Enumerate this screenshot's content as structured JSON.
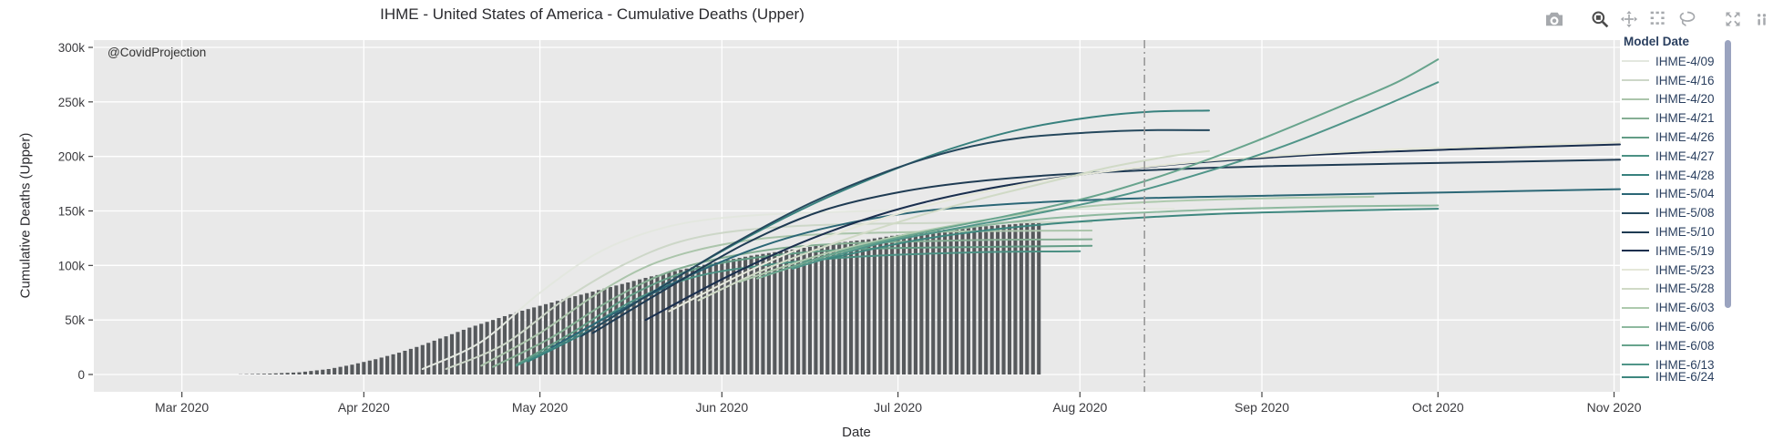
{
  "title": "IHME - United States of America - Cumulative Deaths (Upper)",
  "annotation": "@CovidProjection",
  "legend": {
    "title": "Model Date",
    "has_scrollbar": true,
    "clipped_last_entry": true
  },
  "modebar": {
    "icons": [
      "camera",
      "zoom",
      "pan",
      "box-select",
      "lasso-select",
      "autoscale",
      "plotly-logo"
    ]
  },
  "chart_data": {
    "type": "mixed",
    "title": "IHME - United States of America - Cumulative Deaths (Upper)",
    "x_axis": {
      "title": "Date",
      "unit": "days since 2020-02-15",
      "range_days": [
        0,
        260
      ],
      "ticks": [
        {
          "label": "Mar 2020",
          "day": 15
        },
        {
          "label": "Apr 2020",
          "day": 46
        },
        {
          "label": "May 2020",
          "day": 76
        },
        {
          "label": "Jun 2020",
          "day": 107
        },
        {
          "label": "Jul 2020",
          "day": 137
        },
        {
          "label": "Aug 2020",
          "day": 168
        },
        {
          "label": "Sep 2020",
          "day": 199
        },
        {
          "label": "Oct 2020",
          "day": 229
        },
        {
          "label": "Nov 2020",
          "day": 259
        }
      ],
      "grid": true
    },
    "y_axis": {
      "title": "Cumulative Deaths (Upper)",
      "unit": "thousands of deaths",
      "range_k": [
        -16,
        307
      ],
      "ticks": [
        {
          "label": "0",
          "value": 0
        },
        {
          "label": "50k",
          "value": 50
        },
        {
          "label": "100k",
          "value": 100
        },
        {
          "label": "150k",
          "value": 150
        },
        {
          "label": "200k",
          "value": 200
        },
        {
          "label": "250k",
          "value": 250
        },
        {
          "label": "300k",
          "value": 300
        }
      ],
      "grid": true
    },
    "plot_bg": "#e9e9e9",
    "grid_color": "#ffffff",
    "refline": {
      "day": 179,
      "approx_date": "mid-Aug 2020",
      "style": "dash-dot",
      "color": "#999999"
    },
    "bars": {
      "name": "reported-cumulative-deaths",
      "color": "#56595c",
      "daily": true,
      "day_range": [
        25,
        161
      ],
      "anchors_day_valueK": [
        [
          25,
          0.2
        ],
        [
          30,
          0.8
        ],
        [
          35,
          2
        ],
        [
          40,
          5
        ],
        [
          44,
          9
        ],
        [
          48,
          14
        ],
        [
          52,
          20
        ],
        [
          56,
          27
        ],
        [
          60,
          35
        ],
        [
          64,
          43
        ],
        [
          68,
          50
        ],
        [
          72,
          57
        ],
        [
          76,
          63
        ],
        [
          80,
          69
        ],
        [
          85,
          76
        ],
        [
          90,
          83
        ],
        [
          95,
          90
        ],
        [
          100,
          96
        ],
        [
          107,
          104
        ],
        [
          112,
          109
        ],
        [
          117,
          113
        ],
        [
          122,
          117
        ],
        [
          127,
          121
        ],
        [
          132,
          124
        ],
        [
          137,
          128
        ],
        [
          142,
          131
        ],
        [
          147,
          134
        ],
        [
          152,
          136
        ],
        [
          157,
          138
        ],
        [
          161,
          140
        ]
      ]
    },
    "series": [
      {
        "name": "IHME-4/09",
        "color": "#e3e7df",
        "points": [
          [
            56,
            5
          ],
          [
            66,
            30
          ],
          [
            76,
            75
          ],
          [
            86,
            112
          ],
          [
            96,
            133
          ],
          [
            106,
            143
          ],
          [
            120,
            148
          ],
          [
            145,
            151
          ],
          [
            184,
            152
          ]
        ]
      },
      {
        "name": "IHME-4/16",
        "color": "#cdd7c8",
        "points": [
          [
            60,
            5
          ],
          [
            70,
            28
          ],
          [
            80,
            68
          ],
          [
            90,
            100
          ],
          [
            100,
            122
          ],
          [
            112,
            133
          ],
          [
            130,
            138
          ],
          [
            170,
            140
          ]
        ]
      },
      {
        "name": "IHME-4/20",
        "color": "#abc5ab",
        "points": [
          [
            66,
            8
          ],
          [
            76,
            38
          ],
          [
            86,
            75
          ],
          [
            96,
            103
          ],
          [
            108,
            120
          ],
          [
            122,
            128
          ],
          [
            145,
            131
          ],
          [
            170,
            132
          ]
        ]
      },
      {
        "name": "IHME-4/21",
        "color": "#86af94",
        "points": [
          [
            68,
            7
          ],
          [
            78,
            34
          ],
          [
            88,
            68
          ],
          [
            98,
            94
          ],
          [
            110,
            110
          ],
          [
            124,
            119
          ],
          [
            148,
            123
          ],
          [
            170,
            124
          ]
        ]
      },
      {
        "name": "IHME-4/26",
        "color": "#639d86",
        "points": [
          [
            72,
            9
          ],
          [
            82,
            40
          ],
          [
            92,
            74
          ],
          [
            102,
            96
          ],
          [
            114,
            108
          ],
          [
            130,
            115
          ],
          [
            152,
            117
          ],
          [
            170,
            118
          ]
        ]
      },
      {
        "name": "IHME-4/27",
        "color": "#4c9184",
        "points": [
          [
            72,
            8
          ],
          [
            82,
            36
          ],
          [
            92,
            68
          ],
          [
            102,
            89
          ],
          [
            114,
            100
          ],
          [
            130,
            108
          ],
          [
            150,
            112
          ],
          [
            168,
            113
          ]
        ]
      },
      {
        "name": "IHME-4/28",
        "color": "#38817e",
        "points": [
          [
            74,
            12
          ],
          [
            86,
            45
          ],
          [
            98,
            85
          ],
          [
            110,
            122
          ],
          [
            122,
            155
          ],
          [
            134,
            183
          ],
          [
            146,
            207
          ],
          [
            158,
            225
          ],
          [
            170,
            236
          ],
          [
            180,
            241
          ],
          [
            190,
            242
          ]
        ]
      },
      {
        "name": "IHME-5/04",
        "color": "#2b6776",
        "points": [
          [
            78,
            25
          ],
          [
            90,
            60
          ],
          [
            102,
            92
          ],
          [
            114,
            118
          ],
          [
            126,
            136
          ],
          [
            140,
            149
          ],
          [
            155,
            156
          ],
          [
            175,
            161
          ],
          [
            200,
            164
          ],
          [
            230,
            167
          ],
          [
            260,
            170
          ]
        ]
      },
      {
        "name": "IHME-5/08",
        "color": "#25485d",
        "points": [
          [
            83,
            35
          ],
          [
            96,
            78
          ],
          [
            109,
            120
          ],
          [
            122,
            157
          ],
          [
            135,
            186
          ],
          [
            147,
            206
          ],
          [
            158,
            217
          ],
          [
            170,
            222
          ],
          [
            180,
            224
          ],
          [
            190,
            224
          ]
        ]
      },
      {
        "name": "IHME-5/10",
        "color": "#1f3b53",
        "points": [
          [
            85,
            38
          ],
          [
            98,
            80
          ],
          [
            111,
            120
          ],
          [
            124,
            150
          ],
          [
            138,
            168
          ],
          [
            152,
            178
          ],
          [
            170,
            185
          ],
          [
            200,
            191
          ],
          [
            230,
            194
          ],
          [
            260,
            197
          ]
        ]
      },
      {
        "name": "IHME-5/19",
        "color": "#1a2f4e",
        "points": [
          [
            94,
            50
          ],
          [
            108,
            90
          ],
          [
            122,
            124
          ],
          [
            136,
            150
          ],
          [
            150,
            168
          ],
          [
            165,
            181
          ],
          [
            185,
            193
          ],
          [
            210,
            202
          ],
          [
            235,
            207
          ],
          [
            260,
            211
          ]
        ]
      },
      {
        "name": "IHME-5/23",
        "color": "#e5e7d9",
        "points": [
          [
            98,
            58
          ],
          [
            112,
            96
          ],
          [
            126,
            128
          ],
          [
            140,
            152
          ],
          [
            154,
            170
          ],
          [
            168,
            183
          ],
          [
            188,
            195
          ],
          [
            212,
            204
          ],
          [
            236,
            209
          ],
          [
            260,
            213
          ]
        ]
      },
      {
        "name": "IHME-5/28",
        "color": "#d0dac6",
        "points": [
          [
            103,
            68
          ],
          [
            115,
            98
          ],
          [
            127,
            122
          ],
          [
            139,
            143
          ],
          [
            151,
            161
          ],
          [
            163,
            177
          ],
          [
            173,
            190
          ],
          [
            182,
            199
          ],
          [
            187,
            203
          ],
          [
            190,
            205
          ]
        ]
      },
      {
        "name": "IHME-6/03",
        "color": "#aecaae",
        "points": [
          [
            110,
            85
          ],
          [
            124,
            110
          ],
          [
            138,
            128
          ],
          [
            150,
            140
          ],
          [
            162,
            150
          ],
          [
            176,
            157
          ],
          [
            195,
            161
          ],
          [
            218,
            163
          ]
        ]
      },
      {
        "name": "IHME-6/06",
        "color": "#8eb99f",
        "points": [
          [
            113,
            88
          ],
          [
            127,
            112
          ],
          [
            141,
            128
          ],
          [
            155,
            139
          ],
          [
            170,
            146
          ],
          [
            190,
            151
          ],
          [
            210,
            154
          ],
          [
            229,
            155
          ]
        ]
      },
      {
        "name": "IHME-6/08",
        "color": "#68a48d",
        "points": [
          [
            114,
            90
          ],
          [
            128,
            114
          ],
          [
            142,
            131
          ],
          [
            156,
            146
          ],
          [
            170,
            163
          ],
          [
            184,
            186
          ],
          [
            198,
            214
          ],
          [
            212,
            245
          ],
          [
            222,
            268
          ],
          [
            229,
            289
          ]
        ]
      },
      {
        "name": "IHME-6/13",
        "color": "#509589",
        "points": [
          [
            119,
            97
          ],
          [
            133,
            119
          ],
          [
            147,
            134
          ],
          [
            161,
            148
          ],
          [
            175,
            164
          ],
          [
            189,
            185
          ],
          [
            203,
            210
          ],
          [
            217,
            240
          ],
          [
            229,
            268
          ]
        ]
      },
      {
        "name": "IHME-6/24",
        "color": "#3e877f",
        "clipped_in_legend": true,
        "points": [
          [
            125,
            106
          ],
          [
            140,
            123
          ],
          [
            155,
            134
          ],
          [
            170,
            141
          ],
          [
            190,
            147
          ],
          [
            210,
            150
          ],
          [
            229,
            152
          ]
        ]
      }
    ]
  }
}
